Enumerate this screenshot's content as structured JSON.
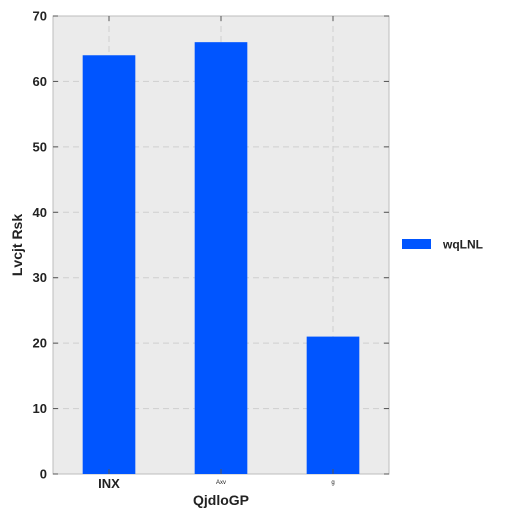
{
  "chart_data": {
    "type": "bar",
    "categories": [
      "INX",
      "Axv",
      "g"
    ],
    "category_label_sizes": [
      "normal",
      "tiny",
      "tiny"
    ],
    "series": [
      {
        "name": "wqLNL",
        "values": [
          64,
          66,
          21
        ],
        "color": "#0055ff"
      }
    ],
    "xlabel": "QjdloGP",
    "ylabel": "Lvcjt Rsk",
    "ylim": [
      0,
      70
    ],
    "yticks": [
      0,
      10,
      20,
      30,
      40,
      50,
      60,
      70
    ],
    "grid": true,
    "grid_style": "dashed",
    "legend_placement": "right",
    "plot_background": "#ebebeb"
  }
}
